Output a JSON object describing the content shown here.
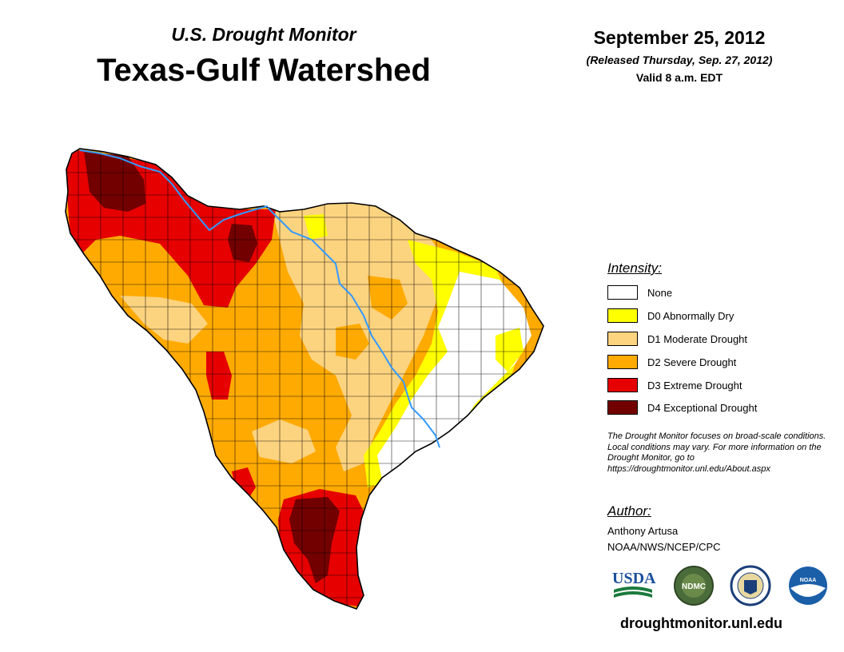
{
  "header": {
    "subtitle": "U.S. Drought Monitor",
    "title": "Texas-Gulf Watershed",
    "date": "September 25, 2012",
    "released": "(Released Thursday, Sep. 27, 2012)",
    "valid": "Valid 8 a.m. EDT"
  },
  "legend": {
    "title": "Intensity:",
    "items": [
      {
        "label": "None",
        "color": "#ffffff"
      },
      {
        "label": "D0 Abnormally Dry",
        "color": "#ffff00"
      },
      {
        "label": "D1 Moderate Drought",
        "color": "#fcd37f"
      },
      {
        "label": "D2 Severe Drought",
        "color": "#ffaa00"
      },
      {
        "label": "D3 Extreme Drought",
        "color": "#e60000"
      },
      {
        "label": "D4 Exceptional Drought",
        "color": "#730000"
      }
    ]
  },
  "note": "The Drought Monitor focuses on broad-scale conditions. Local conditions may vary. For more information on the Drought Monitor, go to https://droughtmonitor.unl.edu/About.aspx",
  "author": {
    "heading": "Author:",
    "name": "Anthony Artusa",
    "org": "NOAA/NWS/NCEP/CPC"
  },
  "logos": {
    "usda": "USDA",
    "ndmc": "NDMC",
    "noaa": "NOAA"
  },
  "website": "droughtmonitor.unl.edu",
  "colors": {
    "none": "#ffffff",
    "d0": "#ffff00",
    "d1": "#fcd37f",
    "d2": "#ffaa00",
    "d3": "#e60000",
    "d4": "#730000",
    "river": "#3399ff",
    "border": "#000000"
  }
}
